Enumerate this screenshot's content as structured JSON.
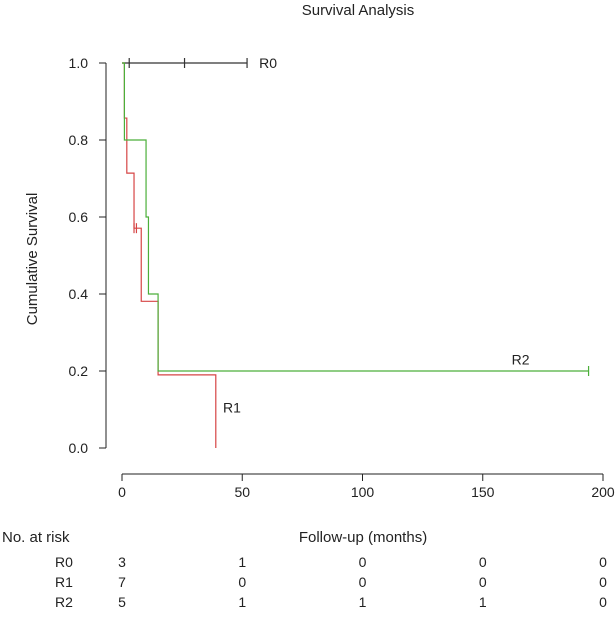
{
  "chart_data": {
    "type": "line",
    "subtype": "kaplan-meier step",
    "title": "Survival Analysis",
    "xlabel": "Follow-up (months)",
    "ylabel": "Cumulative Survival",
    "xlim": [
      0,
      200
    ],
    "ylim": [
      0,
      1
    ],
    "x_ticks": [
      0,
      50,
      100,
      150,
      200
    ],
    "y_ticks": [
      0.0,
      0.2,
      0.4,
      0.6,
      0.8,
      1.0
    ],
    "x_tick_labels": [
      "0",
      "50",
      "100",
      "150",
      "200"
    ],
    "y_tick_labels": [
      "0.0",
      "0.2",
      "0.4",
      "0.6",
      "0.8",
      "1.0"
    ],
    "grid": false,
    "series": [
      {
        "name": "R0",
        "color": "#333333",
        "steps": [
          [
            0,
            1.0
          ],
          [
            52,
            1.0
          ]
        ],
        "censored": [
          [
            3,
            1.0
          ],
          [
            26,
            1.0
          ],
          [
            52,
            1.0
          ]
        ]
      },
      {
        "name": "R1",
        "color": "#d64545",
        "steps": [
          [
            0,
            1.0
          ],
          [
            1,
            0.857
          ],
          [
            2,
            0.714
          ],
          [
            5,
            0.571
          ],
          [
            8,
            0.381
          ],
          [
            15,
            0.19
          ],
          [
            39,
            0.0
          ]
        ],
        "censored": [
          [
            5,
            0.571
          ],
          [
            6,
            0.571
          ]
        ]
      },
      {
        "name": "R2",
        "color": "#4caf3a",
        "steps": [
          [
            0,
            1.0
          ],
          [
            1,
            0.8
          ],
          [
            10,
            0.6
          ],
          [
            11,
            0.4
          ],
          [
            15,
            0.2
          ],
          [
            194,
            0.2
          ]
        ],
        "censored": [
          [
            194,
            0.2
          ]
        ]
      }
    ],
    "series_labels": [
      {
        "text": "R0",
        "x": 57,
        "y": 1.0
      },
      {
        "text": "R1",
        "x": 42,
        "y": 0.105
      },
      {
        "text": "R2",
        "x": 162,
        "y": 0.23
      }
    ],
    "risk_table": {
      "title": "No. at risk",
      "times": [
        0,
        50,
        100,
        150,
        200
      ],
      "rows": [
        {
          "label": "R0",
          "counts": [
            3,
            1,
            0,
            0,
            0
          ]
        },
        {
          "label": "R1",
          "counts": [
            7,
            0,
            0,
            0,
            0
          ]
        },
        {
          "label": "R2",
          "counts": [
            5,
            1,
            1,
            1,
            0
          ]
        }
      ]
    }
  }
}
